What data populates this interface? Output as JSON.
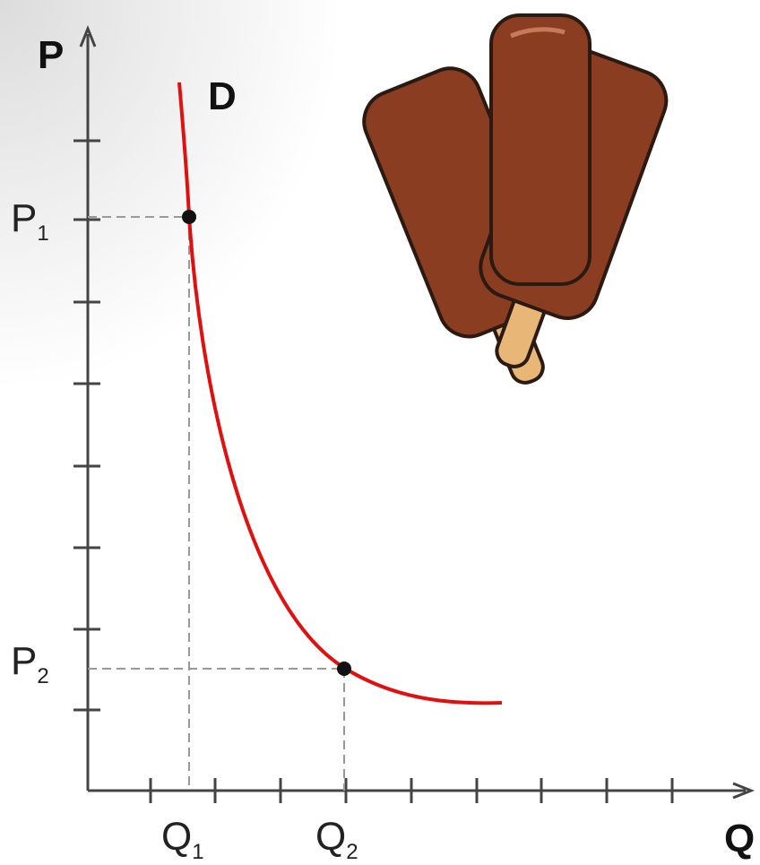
{
  "axes": {
    "y_label": "P",
    "x_label": "Q"
  },
  "curve": {
    "label": "D"
  },
  "points": [
    {
      "price_label": {
        "text": "P",
        "sub": "1"
      },
      "quantity_label": {
        "text": "Q",
        "sub": "1"
      }
    },
    {
      "price_label": {
        "text": "P",
        "sub": "2"
      },
      "quantity_label": {
        "text": "Q",
        "sub": "2"
      }
    }
  ]
}
